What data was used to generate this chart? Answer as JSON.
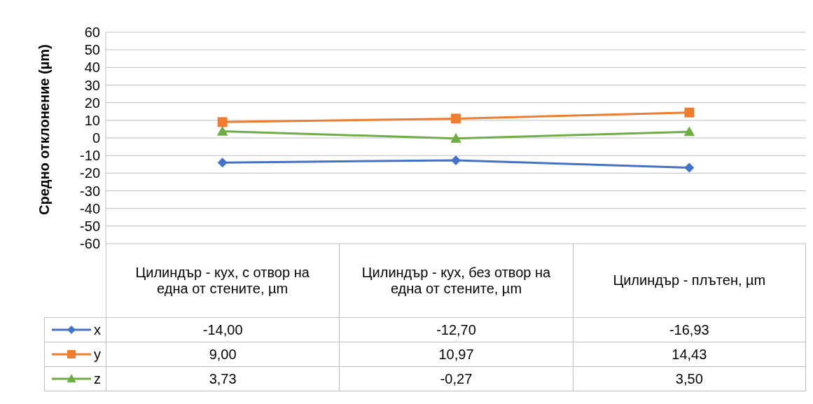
{
  "chart_data": {
    "type": "line",
    "ylabel": "Средно отклонение (µm)",
    "categories": [
      "Цилиндър - кух, с отвор на една от стените, µm",
      "Цилиндър - кух, без отвор на една от стените, µm",
      "Цилиндър - плътен, µm"
    ],
    "series": [
      {
        "name": "x",
        "color": "#4472c4",
        "marker": "diamond",
        "values": [
          -14.0,
          -12.7,
          -16.93
        ],
        "value_labels": [
          "-14,00",
          "-12,70",
          "-16,93"
        ]
      },
      {
        "name": "y",
        "color": "#ed7d31",
        "marker": "square",
        "values": [
          9.0,
          10.97,
          14.43
        ],
        "value_labels": [
          "9,00",
          "10,97",
          "14,43"
        ]
      },
      {
        "name": "z",
        "color": "#70ad47",
        "marker": "triangle",
        "values": [
          3.73,
          -0.27,
          3.5
        ],
        "value_labels": [
          "3,73",
          "-0,27",
          "3,50"
        ]
      }
    ],
    "ylim": [
      -60,
      60
    ],
    "yticks": [
      -60,
      -50,
      -40,
      -30,
      -20,
      -10,
      0,
      10,
      20,
      30,
      40,
      50,
      60
    ],
    "grid": "y",
    "legend": "bottom",
    "line_style": "solid"
  }
}
